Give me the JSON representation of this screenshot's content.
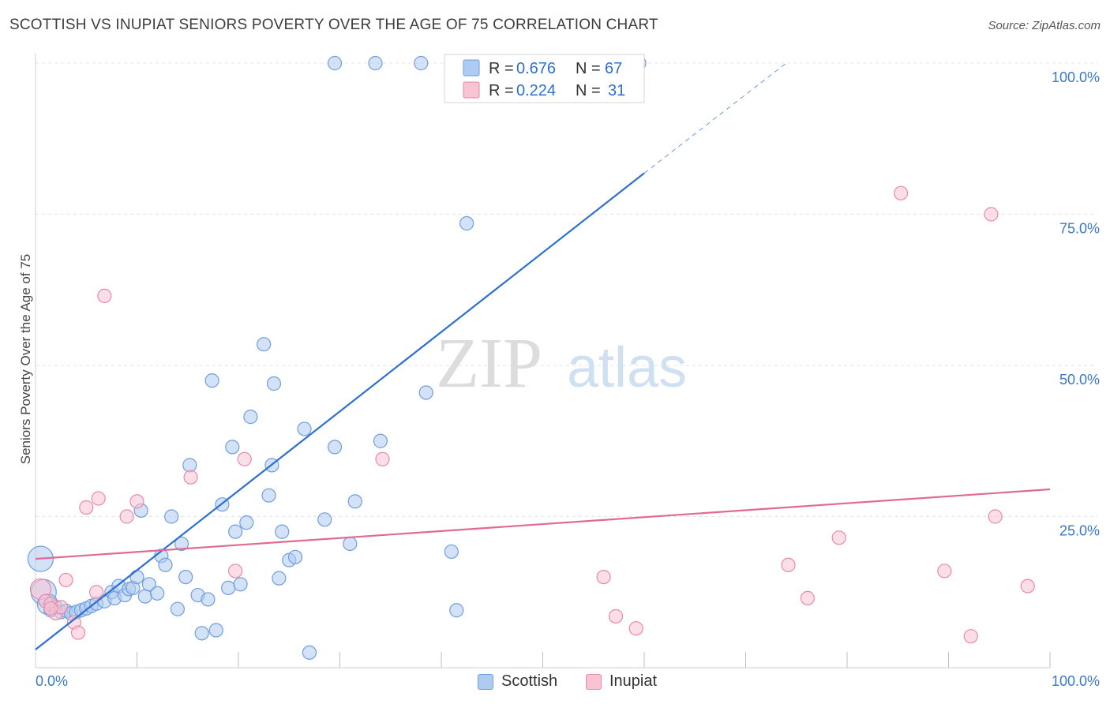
{
  "title": "SCOTTISH VS INUPIAT SENIORS POVERTY OVER THE AGE OF 75 CORRELATION CHART",
  "source": "Source: ZipAtlas.com",
  "watermark": {
    "zip": "ZIP",
    "atlas": "atlas"
  },
  "colors": {
    "scottish_fill": "#aecbf1",
    "scottish_stroke": "#6f9fdc",
    "scottish_line": "#2d6fd0",
    "inupiat_fill": "#f8c3d3",
    "inupiat_stroke": "#e98aa8",
    "inupiat_line": "#e06a95",
    "tick_label": "#3a78c9",
    "grid": "#e3e3e3"
  },
  "legend_top": [
    {
      "r_label": "R =",
      "r_value": "0.676",
      "n_label": "N =",
      "n_value": "67"
    },
    {
      "r_label": "R =",
      "r_value": "0.224",
      "n_label": "N =",
      "n_value": "31"
    }
  ],
  "legend_bottom": {
    "scottish": "Scottish",
    "inupiat": "Inupiat"
  },
  "chart_data": {
    "type": "scatter",
    "title": "SCOTTISH VS INUPIAT SENIORS POVERTY OVER THE AGE OF 75 CORRELATION CHART",
    "xlabel": "",
    "ylabel": "Seniors Poverty Over the Age of 75",
    "xlim": [
      0,
      100
    ],
    "ylim": [
      0,
      100
    ],
    "x_tick_labels": [
      "0.0%",
      "100.0%"
    ],
    "y_ticks": [
      25,
      50,
      75,
      100
    ],
    "y_tick_labels": [
      "25.0%",
      "50.0%",
      "75.0%",
      "100.0%"
    ],
    "grid": true,
    "legend_placement": "top-center",
    "series": [
      {
        "name": "Scottish",
        "r": 0.676,
        "n": 67,
        "trend": {
          "x0": 0,
          "y0": 3,
          "x1": 60,
          "y1": 81.8,
          "dash_x1": 74,
          "dash_y1": 100
        },
        "points": [
          [
            0.5,
            18,
            "L"
          ],
          [
            0.8,
            12.5,
            "L"
          ],
          [
            1.2,
            10.5,
            "M"
          ],
          [
            1.5,
            9.5,
            "S"
          ],
          [
            2,
            10,
            "S"
          ],
          [
            2.5,
            9.2,
            "S"
          ],
          [
            3,
            9.4,
            "S"
          ],
          [
            3.5,
            9,
            "S"
          ],
          [
            4,
            9.2,
            "S"
          ],
          [
            4.5,
            9.5,
            "S"
          ],
          [
            5,
            9.8,
            "S"
          ],
          [
            5.5,
            10.2,
            "S"
          ],
          [
            6,
            10.6,
            "S"
          ],
          [
            6.8,
            11,
            "S"
          ],
          [
            7.5,
            12.5,
            "S"
          ],
          [
            7.8,
            11.5,
            "S"
          ],
          [
            8.2,
            13.5,
            "S"
          ],
          [
            8.8,
            12,
            "S"
          ],
          [
            9.2,
            13,
            "S"
          ],
          [
            9.6,
            13.2,
            "S"
          ],
          [
            10,
            15,
            "S"
          ],
          [
            10.4,
            26,
            "S"
          ],
          [
            10.8,
            11.8,
            "S"
          ],
          [
            11.2,
            13.8,
            "S"
          ],
          [
            12,
            12.3,
            "S"
          ],
          [
            12.4,
            18.5,
            "S"
          ],
          [
            12.8,
            17,
            "S"
          ],
          [
            13.4,
            25,
            "S"
          ],
          [
            14,
            9.7,
            "S"
          ],
          [
            14.4,
            20.5,
            "S"
          ],
          [
            14.8,
            15,
            "S"
          ],
          [
            15.2,
            33.5,
            "S"
          ],
          [
            16,
            12,
            "S"
          ],
          [
            16.4,
            5.7,
            "S"
          ],
          [
            17,
            11.3,
            "S"
          ],
          [
            17.4,
            47.5,
            "S"
          ],
          [
            17.8,
            6.2,
            "S"
          ],
          [
            18.4,
            27,
            "S"
          ],
          [
            19,
            13.2,
            "S"
          ],
          [
            19.4,
            36.5,
            "S"
          ],
          [
            19.7,
            22.5,
            "S"
          ],
          [
            20.2,
            13.8,
            "S"
          ],
          [
            20.8,
            24,
            "S"
          ],
          [
            21.2,
            41.5,
            "S"
          ],
          [
            22.5,
            53.5,
            "S"
          ],
          [
            23,
            28.5,
            "S"
          ],
          [
            23.3,
            33.5,
            "S"
          ],
          [
            23.5,
            47,
            "S"
          ],
          [
            24,
            14.8,
            "S"
          ],
          [
            24.3,
            22.5,
            "S"
          ],
          [
            25,
            17.8,
            "S"
          ],
          [
            25.6,
            18.3,
            "S"
          ],
          [
            26.5,
            39.5,
            "S"
          ],
          [
            27,
            2.5,
            "S"
          ],
          [
            28.5,
            24.5,
            "S"
          ],
          [
            29.5,
            36.5,
            "S"
          ],
          [
            31,
            20.5,
            "S"
          ],
          [
            31.5,
            27.5,
            "S"
          ],
          [
            34,
            37.5,
            "S"
          ],
          [
            38.5,
            45.5,
            "S"
          ],
          [
            41,
            19.2,
            "S"
          ],
          [
            41.5,
            9.5,
            "S"
          ],
          [
            42.5,
            73.5,
            "S"
          ],
          [
            29.5,
            100,
            "S"
          ],
          [
            33.5,
            100,
            "S"
          ],
          [
            38,
            100,
            "S"
          ],
          [
            59.5,
            100,
            "S"
          ]
        ]
      },
      {
        "name": "Inupiat",
        "r": 0.224,
        "n": 31,
        "trend": {
          "x0": 0,
          "y0": 18,
          "x1": 100,
          "y1": 29.5
        },
        "points": [
          [
            0.5,
            13,
            "M"
          ],
          [
            1,
            11,
            "S"
          ],
          [
            1.5,
            10.5,
            "S"
          ],
          [
            2,
            9,
            "S"
          ],
          [
            2.5,
            10,
            "S"
          ],
          [
            3,
            14.5,
            "S"
          ],
          [
            3.8,
            7.5,
            "S"
          ],
          [
            4.2,
            5.8,
            "S"
          ],
          [
            5,
            26.5,
            "S"
          ],
          [
            6,
            12.5,
            "S"
          ],
          [
            6.2,
            28,
            "S"
          ],
          [
            6.8,
            61.5,
            "S"
          ],
          [
            9,
            25,
            "S"
          ],
          [
            10,
            27.5,
            "S"
          ],
          [
            15.3,
            31.5,
            "S"
          ],
          [
            19.7,
            16,
            "S"
          ],
          [
            20.6,
            34.5,
            "S"
          ],
          [
            34.2,
            34.5,
            "S"
          ],
          [
            56,
            15,
            "S"
          ],
          [
            57.2,
            8.5,
            "S"
          ],
          [
            59.2,
            6.5,
            "S"
          ],
          [
            74.2,
            17,
            "S"
          ],
          [
            76.1,
            11.5,
            "S"
          ],
          [
            79.2,
            21.5,
            "S"
          ],
          [
            85.3,
            78.5,
            "S"
          ],
          [
            89.6,
            16,
            "S"
          ],
          [
            92.2,
            5.2,
            "S"
          ],
          [
            94.2,
            75,
            "S"
          ],
          [
            94.6,
            25,
            "S"
          ],
          [
            97.8,
            13.5,
            "S"
          ],
          [
            1.5,
            9.8,
            "S"
          ]
        ]
      }
    ]
  }
}
